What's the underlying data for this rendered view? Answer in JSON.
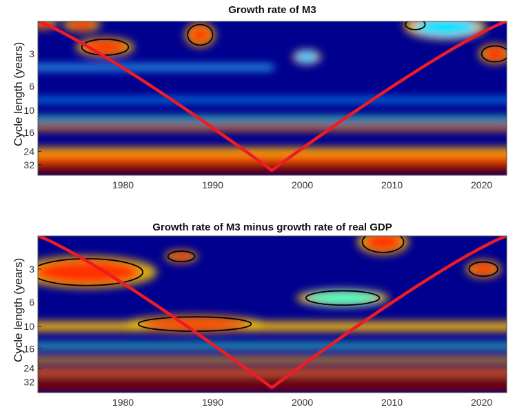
{
  "chart_data": [
    {
      "type": "heatmap",
      "subtype": "wavelet-power-spectrum",
      "title": "Growth rate of M3",
      "xlabel": "",
      "ylabel": "Cycle length (years)",
      "xlim": [
        1970.5,
        2022.8
      ],
      "ylim": [
        1.5,
        40
      ],
      "yscale": "log",
      "xticks": [
        1980,
        1990,
        2000,
        2010,
        2020
      ],
      "yticks": [
        3,
        6,
        10,
        16,
        24,
        32
      ],
      "colormap": "jet",
      "background_color": "#00008f",
      "cone_of_influence_color": "#ee1b24",
      "cone_of_influence": {
        "start_year": 1970.5,
        "end_year": 2022.8,
        "min_period": 1.5,
        "apex_year": 1996.6,
        "apex_period": 36
      },
      "bands": [
        {
          "period": 34,
          "width": 0.14,
          "color": "#7a0000",
          "x_from": 1970.5,
          "x_to": 2022.8
        },
        {
          "period": 28,
          "width": 0.1,
          "color": "#ff5000",
          "x_from": 1970.5,
          "x_to": 2022.8
        },
        {
          "period": 24,
          "width": 0.08,
          "color": "#ffb000",
          "x_from": 1970.5,
          "x_to": 2022.8
        },
        {
          "period": 14.5,
          "width": 0.06,
          "color": "#ff8c00",
          "x_from": 1970.5,
          "x_to": 2022.8
        },
        {
          "period": 12,
          "width": 0.05,
          "color": "#40ffc0",
          "x_from": 1970.5,
          "x_to": 2022.8
        },
        {
          "period": 8,
          "width": 0.05,
          "color": "#00a0ff",
          "x_from": 1970.5,
          "x_to": 2022.8
        },
        {
          "period": 4,
          "width": 0.06,
          "color": "#30c0ff",
          "x_from": 1970.5,
          "x_to": 1996
        }
      ],
      "hotspots": [
        {
          "year": 1978,
          "period": 2.6,
          "w": 2.5,
          "h": 0.08,
          "color": "#ff3000"
        },
        {
          "year": 1970.8,
          "period": 1.55,
          "w": 1.5,
          "h": 0.05,
          "color": "#ff3000"
        },
        {
          "year": 1975.4,
          "period": 1.6,
          "w": 1.6,
          "h": 0.06,
          "color": "#ff3000"
        },
        {
          "year": 1988.6,
          "period": 2.0,
          "w": 1.3,
          "h": 0.1,
          "color": "#ff4000"
        },
        {
          "year": 2012.6,
          "period": 1.6,
          "w": 1.0,
          "h": 0.05,
          "color": "#ff3000"
        },
        {
          "year": 2021.5,
          "period": 3.0,
          "w": 1.4,
          "h": 0.08,
          "color": "#ff2000"
        },
        {
          "year": 2016,
          "period": 1.7,
          "w": 3.5,
          "h": 0.1,
          "color": "#00e0ff"
        },
        {
          "year": 2000.5,
          "period": 3.2,
          "w": 1.2,
          "h": 0.06,
          "color": "#20d0ff"
        }
      ],
      "significance_contours": [
        {
          "year": 1978,
          "period": 2.6,
          "w": 2.6,
          "h": 0.085
        },
        {
          "year": 1988.6,
          "period": 2.0,
          "w": 1.4,
          "h": 0.11
        },
        {
          "year": 2012.6,
          "period": 1.6,
          "w": 1.1,
          "h": 0.055
        },
        {
          "year": 2021.5,
          "period": 3.0,
          "w": 1.5,
          "h": 0.085
        }
      ]
    },
    {
      "type": "heatmap",
      "subtype": "wavelet-power-spectrum",
      "title": "Growth rate of M3 minus growth rate of real GDP",
      "xlabel": "",
      "ylabel": "Cycle length (years)",
      "xlim": [
        1970.5,
        2022.8
      ],
      "ylim": [
        1.5,
        40
      ],
      "yscale": "log",
      "xticks": [
        1980,
        1990,
        2000,
        2010,
        2020
      ],
      "yticks": [
        3,
        6,
        10,
        16,
        24,
        32
      ],
      "colormap": "jet",
      "background_color": "#00008f",
      "cone_of_influence_color": "#ee1b24",
      "cone_of_influence": {
        "start_year": 1970.5,
        "end_year": 2022.8,
        "min_period": 1.5,
        "apex_year": 1996.6,
        "apex_period": 36
      },
      "bands": [
        {
          "period": 34,
          "width": 0.14,
          "color": "#7a0000",
          "x_from": 1970.5,
          "x_to": 2022.8
        },
        {
          "period": 26,
          "width": 0.08,
          "color": "#ff6000",
          "x_from": 1970.5,
          "x_to": 2022.8
        },
        {
          "period": 20,
          "width": 0.06,
          "color": "#ffb000",
          "x_from": 1970.5,
          "x_to": 2022.8
        },
        {
          "period": 10,
          "width": 0.1,
          "color": "#ffc000",
          "x_from": 1970.5,
          "x_to": 2022.8
        },
        {
          "period": 15,
          "width": 0.05,
          "color": "#40ffc0",
          "x_from": 1970.5,
          "x_to": 2022.8
        }
      ],
      "hotspots": [
        {
          "year": 1976,
          "period": 3.2,
          "w": 6,
          "h": 0.13,
          "color": "#ff3000"
        },
        {
          "year": 1988,
          "period": 9.5,
          "w": 6,
          "h": 0.07,
          "color": "#ff4000"
        },
        {
          "year": 2009,
          "period": 1.7,
          "w": 2.2,
          "h": 0.1,
          "color": "#ff3000"
        },
        {
          "year": 1986.5,
          "period": 2.3,
          "w": 1.4,
          "h": 0.05,
          "color": "#ff3000"
        },
        {
          "year": 2004.5,
          "period": 5.5,
          "w": 4,
          "h": 0.07,
          "color": "#40ffc0"
        },
        {
          "year": 2020.2,
          "period": 3.0,
          "w": 1.5,
          "h": 0.07,
          "color": "#ff3000"
        }
      ],
      "significance_contours": [
        {
          "year": 1976,
          "period": 3.2,
          "w": 6.2,
          "h": 0.14
        },
        {
          "year": 1988,
          "period": 9.5,
          "w": 6.3,
          "h": 0.075
        },
        {
          "year": 2009,
          "period": 1.7,
          "w": 2.3,
          "h": 0.11
        },
        {
          "year": 1986.5,
          "period": 2.3,
          "w": 1.5,
          "h": 0.055
        },
        {
          "year": 2004.5,
          "period": 5.5,
          "w": 4.1,
          "h": 0.075
        },
        {
          "year": 2020.2,
          "period": 3.0,
          "w": 1.6,
          "h": 0.075
        }
      ]
    }
  ]
}
